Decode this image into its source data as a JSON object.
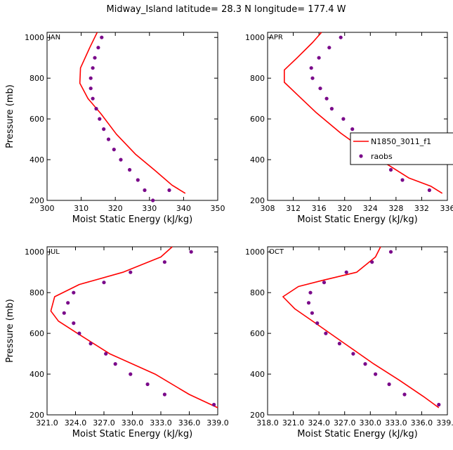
{
  "figure": {
    "title": "Midway_Island   latitude= 28.3 N longitude= 177.4 W"
  },
  "legend": {
    "model_label": "N1850_3011_f1",
    "obs_label": "raobs"
  },
  "colors": {
    "model": "#ff0000",
    "obs": "#7a0a8a",
    "axis": "#000000"
  },
  "chart_data": [
    {
      "type": "line",
      "panel": "JAN",
      "xlabel": "Moist Static Energy (kJ/kg)",
      "ylabel": "Pressure (mb)",
      "xlim": [
        300,
        350
      ],
      "ylim": [
        1025,
        200
      ],
      "xticks": [
        300,
        310,
        320,
        330,
        340,
        350
      ],
      "xtick_labels": [
        "300",
        "310",
        "320",
        "330",
        "340",
        "350"
      ],
      "yticks": [
        200,
        400,
        600,
        800,
        1000
      ],
      "ytick_labels": [
        "200",
        "400",
        "600",
        "800",
        "1000"
      ],
      "series": [
        {
          "name": "N1850_3011_f1",
          "style": "line",
          "x": [
            314.7,
            312.5,
            309.8,
            309.6,
            312.0,
            315.8,
            320.3,
            326.0,
            331.4,
            336.6,
            340.5
          ],
          "y": [
            1025,
            950,
            850,
            775,
            700,
            625,
            525,
            425,
            350,
            275,
            235
          ]
        },
        {
          "name": "raobs",
          "style": "points",
          "x": [
            316.0,
            315.0,
            314.0,
            313.4,
            312.8,
            312.8,
            313.4,
            314.4,
            315.4,
            316.6,
            318.0,
            319.6,
            321.6,
            324.2,
            326.6,
            328.6,
            331.0,
            335.8
          ],
          "y": [
            1000,
            950,
            900,
            850,
            800,
            750,
            700,
            650,
            600,
            550,
            500,
            450,
            400,
            350,
            300,
            250,
            200,
            250
          ]
        }
      ]
    },
    {
      "type": "line",
      "panel": "APR",
      "xlabel": "Moist Static Energy (kJ/kg)",
      "ylabel": "",
      "xlim": [
        308,
        336
      ],
      "ylim": [
        1025,
        200
      ],
      "xticks": [
        308,
        312,
        316,
        320,
        324,
        328,
        332,
        336
      ],
      "xtick_labels": [
        "308",
        "312",
        "316",
        "320",
        "324",
        "328",
        "332",
        "336"
      ],
      "yticks": [
        200,
        400,
        600,
        800,
        1000
      ],
      "ytick_labels": [
        "200",
        "400",
        "600",
        "800",
        "1000"
      ],
      "series": [
        {
          "name": "N1850_3011_f1",
          "style": "line",
          "x": [
            316.4,
            315.0,
            312.6,
            310.6,
            310.6,
            312.6,
            315.6,
            319.4,
            323.8,
            327.0,
            330.0,
            333.4,
            335.2
          ],
          "y": [
            1025,
            975,
            900,
            840,
            780,
            720,
            630,
            530,
            430,
            370,
            310,
            270,
            235
          ]
        },
        {
          "name": "raobs",
          "style": "points",
          "x": [
            319.4,
            317.6,
            316.0,
            314.8,
            315.0,
            316.2,
            317.2,
            318.0,
            319.8,
            321.2,
            322.6,
            324.4,
            325.6,
            327.2,
            329.0,
            333.2
          ],
          "y": [
            1000,
            950,
            900,
            850,
            800,
            750,
            700,
            650,
            600,
            550,
            500,
            450,
            400,
            350,
            300,
            250
          ]
        }
      ]
    },
    {
      "type": "line",
      "panel": "JUL",
      "xlabel": "Moist Static Energy (kJ/kg)",
      "ylabel": "Pressure (mb)",
      "xlim": [
        321,
        339
      ],
      "ylim": [
        1025,
        200
      ],
      "xticks": [
        321,
        324,
        327,
        330,
        333,
        336,
        339
      ],
      "xtick_labels": [
        "321.0",
        "324.0",
        "327.0",
        "330.0",
        "333.0",
        "336.0",
        "339.0"
      ],
      "yticks": [
        200,
        400,
        600,
        800,
        1000
      ],
      "ytick_labels": [
        "200",
        "400",
        "600",
        "800",
        "1000"
      ],
      "series": [
        {
          "name": "N1850_3011_f1",
          "style": "line",
          "x": [
            334.2,
            333.0,
            329.0,
            324.4,
            321.8,
            321.4,
            322.2,
            324.2,
            327.6,
            332.4,
            336.0,
            339.0
          ],
          "y": [
            1025,
            975,
            900,
            840,
            780,
            710,
            660,
            600,
            500,
            400,
            300,
            235
          ]
        },
        {
          "name": "raobs",
          "style": "points",
          "x": [
            336.2,
            333.4,
            329.8,
            327.0,
            323.8,
            323.2,
            322.8,
            323.8,
            324.4,
            325.6,
            327.2,
            328.2,
            329.8,
            331.6,
            333.4,
            338.6
          ],
          "y": [
            1000,
            950,
            900,
            850,
            800,
            750,
            700,
            650,
            600,
            550,
            500,
            450,
            400,
            350,
            300,
            250
          ]
        }
      ]
    },
    {
      "type": "line",
      "panel": "OCT",
      "xlabel": "Moist Static Energy (kJ/kg)",
      "ylabel": "",
      "xlim": [
        318,
        339
      ],
      "ylim": [
        1025,
        200
      ],
      "xticks": [
        318,
        321,
        324,
        327,
        330,
        333,
        336,
        339
      ],
      "xtick_labels": [
        "318.0",
        "321.0",
        "324.0",
        "327.0",
        "330.0",
        "333.0",
        "336.0",
        "339.0"
      ],
      "yticks": [
        200,
        400,
        600,
        800,
        1000
      ],
      "ytick_labels": [
        "200",
        "400",
        "600",
        "800",
        "1000"
      ],
      "series": [
        {
          "name": "N1850_3011_f1",
          "style": "line",
          "x": [
            331.2,
            330.6,
            328.4,
            324.4,
            321.6,
            319.8,
            321.2,
            323.6,
            327.0,
            330.4,
            333.4,
            336.2,
            338.0
          ],
          "y": [
            1025,
            975,
            900,
            860,
            830,
            780,
            720,
            650,
            550,
            450,
            370,
            290,
            235
          ]
        },
        {
          "name": "raobs",
          "style": "points",
          "x": [
            332.4,
            330.2,
            327.2,
            324.6,
            323.0,
            322.8,
            323.2,
            323.8,
            324.8,
            326.4,
            328.0,
            329.4,
            330.6,
            332.2,
            334.0,
            338.0
          ],
          "y": [
            1000,
            950,
            900,
            850,
            800,
            750,
            700,
            650,
            600,
            550,
            500,
            450,
            400,
            350,
            300,
            250
          ]
        }
      ]
    }
  ]
}
